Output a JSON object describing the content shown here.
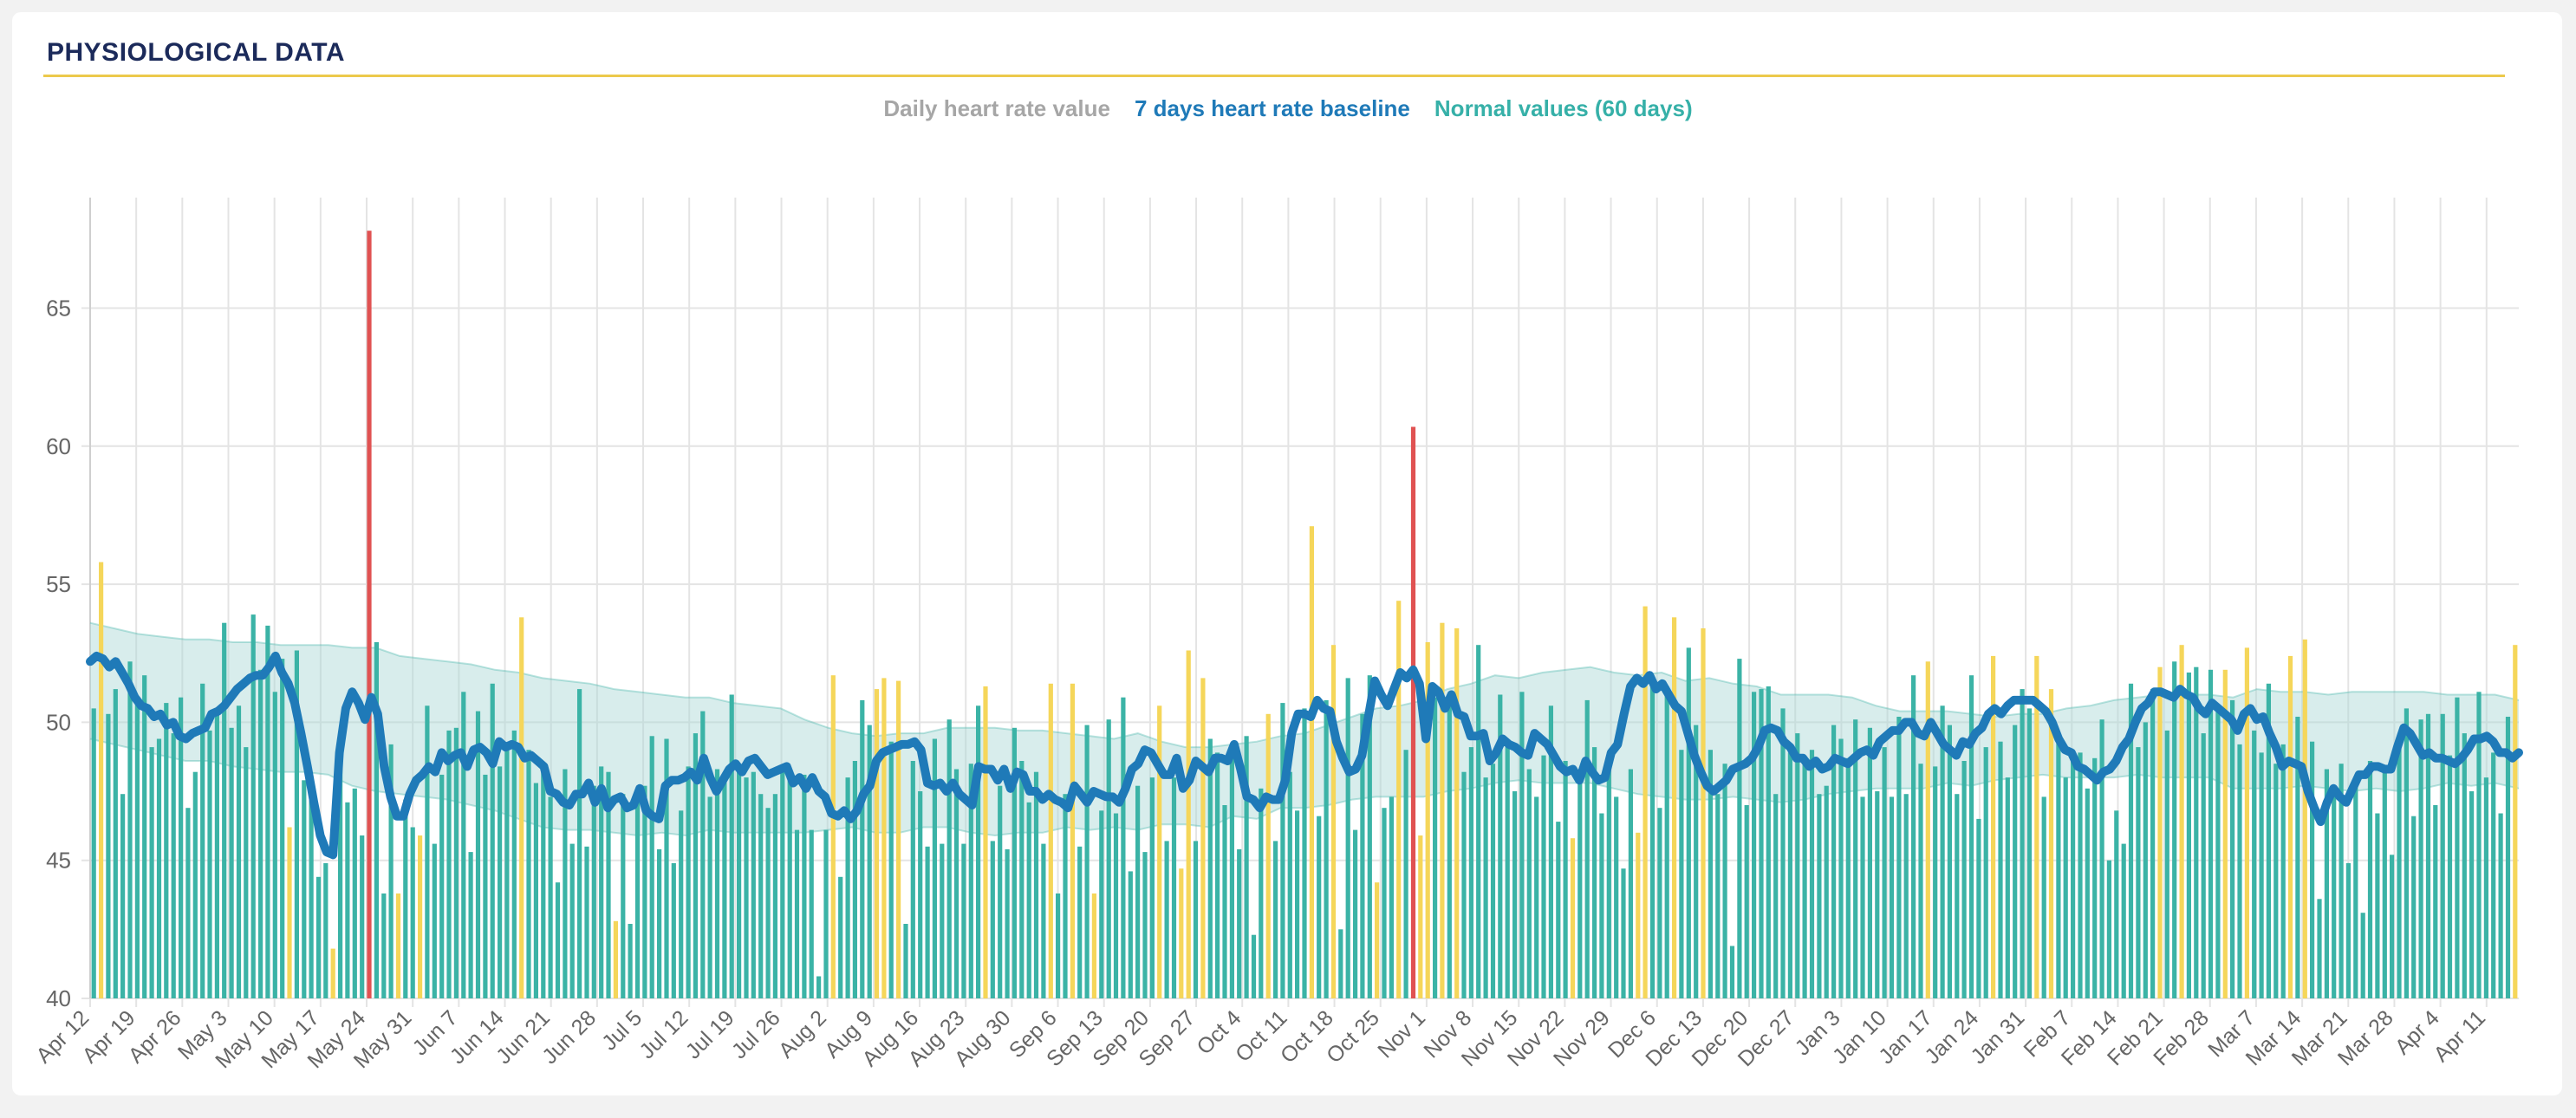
{
  "card": {
    "title": "PHYSIOLOGICAL DATA"
  },
  "legend": {
    "daily": "Daily heart rate value",
    "baseline": "7 days heart rate baseline",
    "normal": "Normal values (60 days)"
  },
  "colors": {
    "bar_normal": "#3bb3a6",
    "bar_out_of_range": "#f5d65a",
    "bar_spike": "#e05252",
    "baseline": "#1f7ab8",
    "band": "#a8d8d4",
    "grid": "#e4e4e4",
    "title": "#1b2a5a",
    "title_rule": "#ecc94b"
  },
  "chart_data": {
    "type": "bar",
    "y_axis": {
      "min": 40,
      "max": 69,
      "ticks": [
        40,
        45,
        50,
        55,
        60,
        65
      ]
    },
    "x_axis_labels": [
      "Apr 12",
      "Apr 19",
      "Apr 26",
      "May 3",
      "May 10",
      "May 17",
      "May 24",
      "May 31",
      "Jun 7",
      "Jun 14",
      "Jun 21",
      "Jun 28",
      "Jul 5",
      "Jul 12",
      "Jul 19",
      "Jul 26",
      "Aug 2",
      "Aug 9",
      "Aug 16",
      "Aug 23",
      "Aug 30",
      "Sep 6",
      "Sep 13",
      "Sep 20",
      "Sep 27",
      "Oct 4",
      "Oct 11",
      "Oct 18",
      "Oct 25",
      "Nov 1",
      "Nov 8",
      "Nov 15",
      "Nov 22",
      "Nov 29",
      "Dec 6",
      "Dec 13",
      "Dec 20",
      "Dec 27",
      "Jan 3",
      "Jan 10",
      "Jan 17",
      "Jan 24",
      "Jan 31",
      "Feb 7",
      "Feb 14",
      "Feb 21",
      "Feb 28",
      "Mar 7",
      "Mar 14",
      "Mar 21",
      "Mar 28",
      "Apr 4",
      "Apr 11"
    ],
    "grid": true,
    "series": [
      {
        "name": "Daily heart rate value",
        "values": [
          50.5,
          55.8,
          50.3,
          51.2,
          47.4,
          52.2,
          50.8,
          51.7,
          49.1,
          49.4,
          50.7,
          49.6,
          50.9,
          46.9,
          48.2,
          51.4,
          49.7,
          50.5,
          53.6,
          49.8,
          50.6,
          49.1,
          53.9,
          51.9,
          53.5,
          51.1,
          52.3,
          46.2,
          52.6,
          47.9,
          47.3,
          44.4,
          44.9,
          41.8,
          49.1,
          47.1,
          47.6,
          45.9,
          67.8,
          52.9,
          43.8,
          49.2,
          43.8,
          47.2,
          46.2,
          45.9,
          50.6,
          45.6,
          48.1,
          49.7,
          49.8,
          51.1,
          45.3,
          50.4,
          48.1,
          51.4,
          48.4,
          49.0,
          49.7,
          53.8,
          49.0,
          47.8,
          48.5,
          47.3,
          44.2,
          48.3,
          45.6,
          51.2,
          45.5,
          47.7,
          48.4,
          48.2,
          42.8,
          47.4,
          42.7,
          47.4,
          47.7,
          49.5,
          45.4,
          49.4,
          44.9,
          46.8,
          48.4,
          49.6,
          50.4,
          47.3,
          48.3,
          47.9,
          51.0,
          48.5,
          48.0,
          48.2,
          47.4,
          46.9,
          47.4,
          48.4,
          48.2,
          46.1,
          48.1,
          46.1,
          40.8,
          46.1,
          51.7,
          44.4,
          48.0,
          48.6,
          50.8,
          49.9,
          51.2,
          51.6,
          49.3,
          51.5,
          42.7,
          48.6,
          47.5,
          45.5,
          49.4,
          45.6,
          50.1,
          48.3,
          45.6,
          48.5,
          50.6,
          51.3,
          45.7,
          47.7,
          45.4,
          49.8,
          48.6,
          47.1,
          48.2,
          45.6,
          51.4,
          43.8,
          47.4,
          51.4,
          45.5,
          49.9,
          43.8,
          46.8,
          50.1,
          46.7,
          50.9,
          44.6,
          47.7,
          45.3,
          48.0,
          50.6,
          45.7,
          48.0,
          44.7,
          52.6,
          45.7,
          51.6,
          49.4,
          48.9,
          47.0,
          48.7,
          45.4,
          49.5,
          42.3,
          47.6,
          50.3,
          45.7,
          50.7,
          48.2,
          46.8,
          50.5,
          57.1,
          46.6,
          50.8,
          52.8,
          42.5,
          51.6,
          46.1,
          50.3,
          51.7,
          44.2,
          46.9,
          47.3,
          54.4,
          49.0,
          60.7,
          45.9,
          52.9,
          50.9,
          53.6,
          50.6,
          53.4,
          48.2,
          49.1,
          52.8,
          48.0,
          48.5,
          51.0,
          49.2,
          47.5,
          51.1,
          48.3,
          47.3,
          48.8,
          50.6,
          46.4,
          48.6,
          45.8,
          47.8,
          50.8,
          49.1,
          46.7,
          48.9,
          47.3,
          44.7,
          48.3,
          46.0,
          54.2,
          51.5,
          46.9,
          51.3,
          53.8,
          49.0,
          52.7,
          49.9,
          53.4,
          49.0,
          47.4,
          48.5,
          41.9,
          52.3,
          47.0,
          51.1,
          51.2,
          51.3,
          47.4,
          50.5,
          48.9,
          49.6,
          48.6,
          49.0,
          47.4,
          47.7,
          49.9,
          49.4,
          48.7,
          50.1,
          47.3,
          49.8,
          47.5,
          49.1,
          47.3,
          50.2,
          47.4,
          51.7,
          48.5,
          52.2,
          48.4,
          50.6,
          49.9,
          47.4,
          48.6,
          51.7,
          46.5,
          49.1,
          52.4,
          49.3,
          48.0,
          49.9,
          51.2,
          50.5,
          52.4,
          47.3,
          51.2,
          49.4,
          48.0,
          48.7,
          48.9,
          47.6,
          48.7,
          50.1,
          45.0,
          46.8,
          45.6,
          51.4,
          49.1,
          50.0,
          51.2,
          52.0,
          49.7,
          52.2,
          52.8,
          51.8,
          52.0,
          49.6,
          51.9,
          50.6,
          51.9,
          50.8,
          49.2,
          52.7,
          49.7,
          48.9,
          51.4,
          48.5,
          49.2,
          52.4,
          50.2,
          53.0,
          49.3,
          43.6,
          48.3,
          47.3,
          48.5,
          44.9,
          47.9,
          43.1,
          48.6,
          46.7,
          48.3,
          45.2,
          49.1,
          50.5,
          46.6,
          50.1,
          50.3,
          47.0,
          50.3,
          48.8,
          50.9,
          49.6,
          47.5,
          51.1,
          48.0,
          48.9,
          46.7,
          50.2,
          52.8
        ],
        "kind": "bars"
      },
      {
        "name": "7 days heart rate baseline",
        "values": [
          52.2,
          52.4,
          52.3,
          52.0,
          52.2,
          51.8,
          51.4,
          50.9,
          50.6,
          50.5,
          50.2,
          50.3,
          49.9,
          50.0,
          49.5,
          49.4,
          49.6,
          49.7,
          49.8,
          50.3,
          50.4,
          50.6,
          50.9,
          51.2,
          51.4,
          51.6,
          51.7,
          51.7,
          52.0,
          52.4,
          51.8,
          51.4,
          50.7,
          49.6,
          48.4,
          47.1,
          45.9,
          45.3,
          45.2,
          48.9,
          50.5,
          51.1,
          50.7,
          50.1,
          50.9,
          50.3,
          48.4,
          47.3,
          46.6,
          46.6,
          47.4,
          47.9,
          48.1,
          48.4,
          48.2,
          48.9,
          48.6,
          48.8,
          48.9,
          48.4,
          49.0,
          49.1,
          48.9,
          48.5,
          49.3,
          49.1,
          49.2,
          49.1,
          48.7,
          48.8,
          48.6,
          48.4,
          47.5,
          47.4,
          47.1,
          47.0,
          47.4,
          47.4,
          47.8,
          47.1,
          47.6,
          46.9,
          47.2,
          47.3,
          46.9,
          47.0,
          47.6,
          46.8,
          46.6,
          46.5,
          47.7,
          47.9,
          47.9,
          48.0,
          48.2,
          47.9,
          48.7,
          48.0,
          47.5,
          47.9,
          48.3,
          48.5,
          48.2,
          48.6,
          48.7,
          48.4,
          48.1,
          48.2,
          48.3,
          48.4,
          47.8,
          48.0,
          47.6,
          48.0,
          47.5,
          47.3,
          46.7,
          46.6,
          46.8,
          46.5,
          46.8,
          47.4,
          47.7,
          48.6,
          48.9,
          49.0,
          49.1,
          49.2,
          49.2,
          49.3,
          49.0,
          47.8,
          47.7,
          47.8,
          47.5,
          47.8,
          47.4,
          47.2,
          47.0,
          48.4,
          48.3,
          48.3,
          47.9,
          48.3,
          47.6,
          48.2,
          48.1,
          47.5,
          47.5,
          47.2,
          47.4,
          47.2,
          47.1,
          46.9,
          47.7,
          47.4,
          47.1,
          47.5,
          47.4,
          47.3,
          47.3,
          47.1,
          47.6,
          48.3,
          48.5,
          49.0,
          48.9,
          48.5,
          48.1,
          48.1,
          48.7,
          47.6,
          47.9,
          48.6,
          48.4,
          48.2,
          48.7,
          48.7,
          48.6,
          49.2,
          48.3,
          47.3,
          47.2,
          46.9,
          47.3,
          47.2,
          47.2,
          47.9,
          49.6,
          50.3,
          50.3,
          50.2,
          50.8,
          50.5,
          50.4,
          49.3,
          48.7,
          48.2,
          48.3,
          48.8,
          50.2,
          51.5,
          51.0,
          50.6,
          51.2,
          51.8,
          51.6,
          51.9,
          51.4,
          49.4,
          51.3,
          51.1,
          50.5,
          51.0,
          50.3,
          50.2,
          49.5,
          49.5,
          49.6,
          48.6,
          48.9,
          49.4,
          49.2,
          49.1,
          48.9,
          48.8,
          49.6,
          49.4,
          49.2,
          48.8,
          48.4,
          48.2,
          48.3,
          47.9,
          48.6,
          48.2,
          47.9,
          48.0,
          48.9,
          49.2,
          50.3,
          51.3,
          51.6,
          51.4,
          51.7,
          51.2,
          51.4,
          51.0,
          50.6,
          50.4,
          49.6,
          48.8,
          48.2,
          47.7,
          47.5,
          47.7,
          47.9,
          48.3,
          48.4,
          48.5,
          48.7,
          49.1,
          49.7,
          49.8,
          49.7,
          49.3,
          49.1,
          48.7,
          48.7,
          48.4,
          48.6,
          48.3,
          48.4,
          48.7,
          48.6,
          48.5,
          48.7,
          48.9,
          49.0,
          48.8,
          49.3,
          49.5,
          49.7,
          49.7,
          50.0,
          50.0,
          49.6,
          49.5,
          50.0,
          49.6,
          49.2,
          49.0,
          48.8,
          49.3,
          49.2,
          49.6,
          49.8,
          50.3,
          50.5,
          50.3,
          50.6,
          50.8,
          50.8,
          50.8,
          50.8,
          50.6,
          50.4,
          50.0,
          49.4,
          49.0,
          48.9,
          48.4,
          48.3,
          48.1,
          47.9,
          48.2,
          48.3,
          48.6,
          49.1,
          49.4,
          50.0,
          50.5,
          50.7,
          51.1,
          51.1,
          51.0,
          50.9,
          51.2,
          51.0,
          50.9,
          50.5,
          50.3,
          50.7,
          50.5,
          50.3,
          50.1,
          49.7,
          50.3,
          50.5,
          50.1,
          50.2,
          49.6,
          49.1,
          48.4,
          48.6,
          48.5,
          48.4,
          47.5,
          46.9,
          46.4,
          47.1,
          47.6,
          47.3,
          47.1,
          47.6,
          48.1,
          48.1,
          48.4,
          48.4,
          48.3,
          48.3,
          49.1,
          49.8,
          49.6,
          49.2,
          48.8,
          48.9,
          48.7,
          48.7,
          48.6,
          48.5,
          48.7,
          49.0,
          49.4,
          49.4,
          49.5,
          49.3,
          48.9,
          48.9,
          48.7,
          48.9
        ],
        "kind": "line"
      },
      {
        "name": "Normal values (60 days)",
        "upper": [
          53.6,
          53.4,
          53.2,
          53.1,
          53.0,
          53.0,
          52.9,
          52.9,
          52.8,
          52.8,
          52.8,
          52.7,
          52.7,
          52.4,
          52.3,
          52.2,
          52.1,
          51.9,
          51.8,
          51.6,
          51.5,
          51.4,
          51.2,
          51.1,
          51.0,
          50.9,
          50.9,
          50.7,
          50.6,
          50.5,
          50.1,
          49.8,
          49.6,
          49.5,
          49.6,
          49.6,
          49.8,
          49.8,
          49.8,
          49.7,
          49.7,
          49.6,
          49.5,
          49.4,
          49.6,
          49.3,
          49.1,
          49.1,
          49.2,
          49.3,
          49.5,
          49.6,
          49.9,
          50.2,
          50.5,
          50.6,
          50.8,
          51.2,
          51.4,
          51.7,
          51.6,
          51.8,
          51.9,
          52.0,
          51.8,
          51.7,
          51.8,
          51.5,
          51.6,
          51.4,
          51.3,
          51.0,
          51.0,
          51.0,
          50.9,
          50.6,
          50.4,
          50.4,
          50.4,
          50.3,
          50.2,
          50.3,
          50.3,
          50.5,
          50.6,
          50.8,
          50.9,
          51.0,
          51.0,
          51.0,
          50.9,
          51.2,
          51.1,
          51.1,
          51.0,
          51.1,
          51.1,
          51.1,
          51.1,
          51.0,
          51.0,
          51.0,
          50.8
        ],
        "lower": [
          49.4,
          49.2,
          49.0,
          48.8,
          48.6,
          48.6,
          48.4,
          48.3,
          48.2,
          48.2,
          48.1,
          47.7,
          47.5,
          47.4,
          47.3,
          47.2,
          47.0,
          46.8,
          46.5,
          46.2,
          46.1,
          46.1,
          46.0,
          45.9,
          46.0,
          45.9,
          46.1,
          46.0,
          46.0,
          46.0,
          46.0,
          46.1,
          46.2,
          46.0,
          46.0,
          46.2,
          46.2,
          46.0,
          45.9,
          46.0,
          46.0,
          46.2,
          46.1,
          46.2,
          46.1,
          46.3,
          46.3,
          46.2,
          46.6,
          46.5,
          46.9,
          46.9,
          47.0,
          47.2,
          47.3,
          47.3,
          47.3,
          47.5,
          47.6,
          47.8,
          47.9,
          47.8,
          47.8,
          47.8,
          47.6,
          47.4,
          47.3,
          47.2,
          47.2,
          47.3,
          47.2,
          47.1,
          47.2,
          47.4,
          47.5,
          47.6,
          47.6,
          47.6,
          47.8,
          47.7,
          47.9,
          48.0,
          48.1,
          48.0,
          48.0,
          48.0,
          48.1,
          48.0,
          48.0,
          48.0,
          47.6,
          47.6,
          47.6,
          47.7,
          47.6,
          47.5,
          47.6,
          47.5,
          47.6,
          47.8,
          47.7,
          47.8,
          47.6
        ],
        "kind": "band"
      }
    ]
  }
}
